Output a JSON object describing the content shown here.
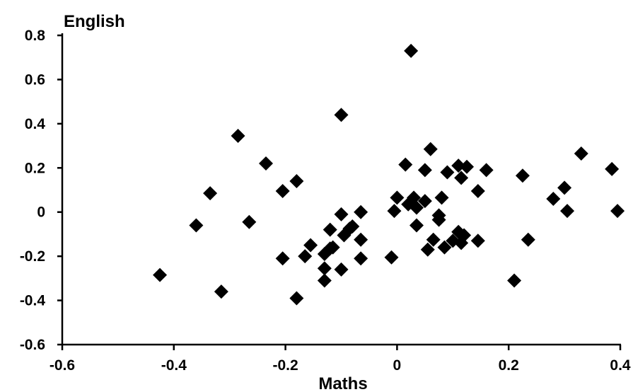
{
  "chart_data": {
    "type": "scatter",
    "title": "",
    "xlabel": "Maths",
    "ylabel": "English",
    "xlim": [
      -0.6,
      0.4
    ],
    "ylim": [
      -0.6,
      0.8
    ],
    "xticks": [
      -0.6,
      -0.4,
      -0.2,
      0,
      0.2,
      0.4
    ],
    "xtick_labels": [
      "-0.6",
      "-0.4",
      "-0.2",
      "0",
      "0.2",
      "0.4"
    ],
    "yticks": [
      -0.6,
      -0.4,
      -0.2,
      0,
      0.2,
      0.4,
      0.6,
      0.8
    ],
    "ytick_labels": [
      "-0.6",
      "-0.4",
      "-0.2",
      "0",
      "0.2",
      "0.4",
      "0.6",
      "0.8"
    ],
    "grid": false,
    "marker": "diamond",
    "color": "#000000",
    "series": [
      {
        "x": [
          -0.425,
          -0.36,
          -0.335,
          -0.315,
          -0.285,
          -0.265,
          -0.235,
          -0.205,
          -0.205,
          -0.18,
          -0.18,
          -0.165,
          -0.155,
          -0.13,
          -0.13,
          -0.13,
          -0.12,
          -0.12,
          -0.115,
          -0.1,
          -0.1,
          -0.1,
          -0.095,
          -0.085,
          -0.08,
          -0.065,
          -0.065,
          -0.065,
          -0.01,
          -0.005,
          0.0,
          0.015,
          0.02,
          0.025,
          0.025,
          0.03,
          0.035,
          0.035,
          0.05,
          0.05,
          0.055,
          0.06,
          0.065,
          0.075,
          0.075,
          0.08,
          0.085,
          0.09,
          0.1,
          0.11,
          0.11,
          0.115,
          0.115,
          0.12,
          0.125,
          0.145,
          0.145,
          0.16,
          0.21,
          0.225,
          0.235,
          0.28,
          0.3,
          0.305,
          0.33,
          0.385,
          0.395
        ],
        "y": [
          -0.285,
          -0.06,
          0.085,
          -0.36,
          0.345,
          -0.045,
          0.22,
          0.095,
          -0.21,
          0.14,
          -0.39,
          -0.2,
          -0.15,
          -0.19,
          -0.255,
          -0.31,
          -0.165,
          -0.08,
          -0.16,
          -0.01,
          -0.26,
          0.44,
          -0.105,
          -0.075,
          -0.065,
          0.0,
          -0.125,
          -0.21,
          -0.205,
          0.005,
          0.065,
          0.215,
          0.035,
          0.045,
          0.73,
          0.065,
          0.02,
          -0.06,
          0.19,
          0.05,
          -0.17,
          0.285,
          -0.125,
          -0.015,
          -0.035,
          0.065,
          -0.16,
          0.18,
          -0.13,
          0.21,
          -0.09,
          0.155,
          -0.14,
          -0.105,
          0.205,
          0.095,
          -0.13,
          0.19,
          -0.31,
          0.165,
          -0.125,
          0.06,
          0.11,
          0.005,
          0.265,
          0.195,
          0.005
        ]
      }
    ]
  }
}
